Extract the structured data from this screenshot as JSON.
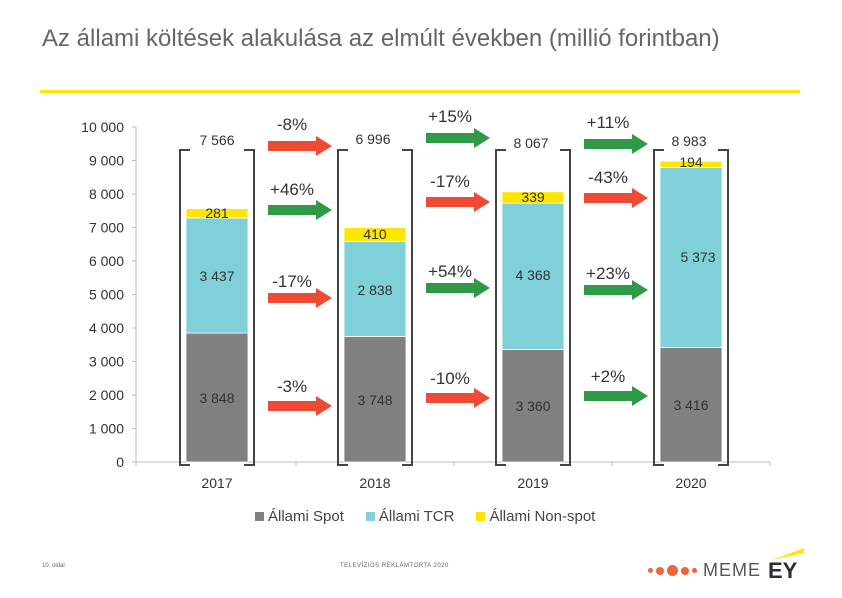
{
  "title": "Az állami költések alakulása az elmúlt években (millió forintban)",
  "chart_data": {
    "type": "bar",
    "stacked": true,
    "categories": [
      "2017",
      "2018",
      "2019",
      "2020"
    ],
    "series": [
      {
        "name": "Állami Spot",
        "color": "#808080",
        "values": [
          3848,
          3748,
          3360,
          3416
        ],
        "labels": [
          "3 848",
          "3 748",
          "3 360",
          "3 416"
        ]
      },
      {
        "name": "Állami TCR",
        "color": "#7fd0d8",
        "values": [
          3437,
          2838,
          4368,
          5373
        ],
        "labels": [
          "3 437",
          "2 838",
          "4 368",
          "5 373"
        ]
      },
      {
        "name": "Állami Non-spot",
        "color": "#ffe600",
        "values": [
          281,
          410,
          339,
          194
        ],
        "labels": [
          "281",
          "410",
          "339",
          "194"
        ]
      }
    ],
    "totals": [
      7566,
      6996,
      8067,
      8983
    ],
    "total_labels": [
      "7 566",
      "6 996",
      "8 067",
      "8 983"
    ],
    "ylim": [
      0,
      10000
    ],
    "yticks": [
      0,
      1000,
      2000,
      3000,
      4000,
      5000,
      6000,
      7000,
      8000,
      9000,
      10000
    ],
    "ytick_labels": [
      "0",
      "1 000",
      "2 000",
      "3 000",
      "4 000",
      "5 000",
      "6 000",
      "7 000",
      "8 000",
      "9 000",
      "10 000"
    ],
    "legend_position": "bottom",
    "grid": false,
    "changes": [
      {
        "between": [
          0,
          1
        ],
        "total": "-8%",
        "total_dir": "down",
        "non_spot": "+46%",
        "non_spot_dir": "up",
        "tcr": "-17%",
        "tcr_dir": "down",
        "spot": "-3%",
        "spot_dir": "down"
      },
      {
        "between": [
          1,
          2
        ],
        "total": "+15%",
        "total_dir": "up",
        "non_spot": "-17%",
        "non_spot_dir": "down",
        "tcr": "+54%",
        "tcr_dir": "up",
        "spot": "-10%",
        "spot_dir": "down"
      },
      {
        "between": [
          2,
          3
        ],
        "total": "+11%",
        "total_dir": "up",
        "non_spot": "-43%",
        "non_spot_dir": "down",
        "tcr": "+23%",
        "tcr_dir": "up",
        "spot": "+2%",
        "spot_dir": "up"
      }
    ],
    "up_color": "#2e9a48",
    "down_color": "#ee4b37"
  },
  "footer": {
    "page": "10. oldal",
    "center": "TELEVÍZIÓS REKLÁMTORTA 2020",
    "brand": "MEME",
    "logo": "EY"
  }
}
